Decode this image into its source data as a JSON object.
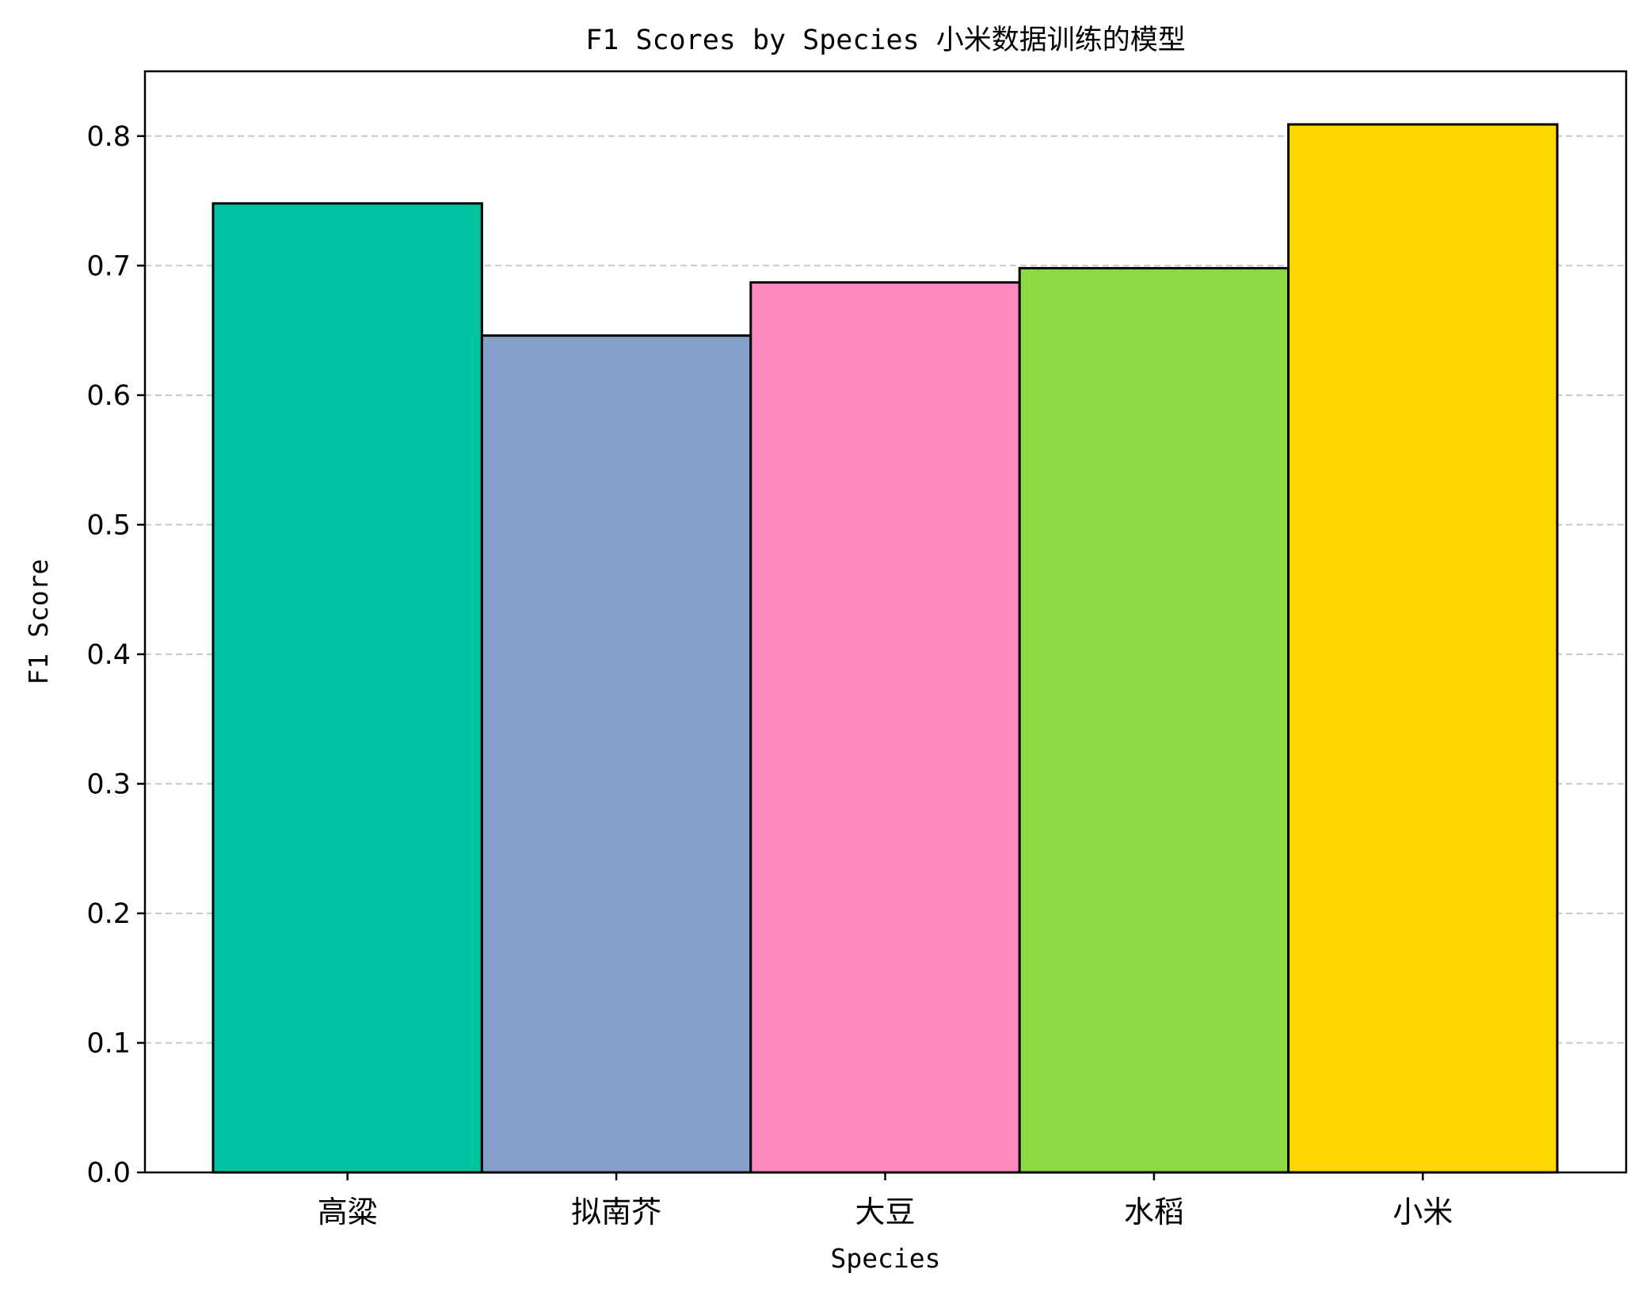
{
  "chart_data": {
    "type": "bar",
    "title": "F1 Scores by Species 小米数据训练的模型",
    "xlabel": "Species",
    "ylabel": "F1 Score",
    "categories": [
      "高粱",
      "拟南芥",
      "大豆",
      "水稻",
      "小米"
    ],
    "values": [
      0.748,
      0.646,
      0.687,
      0.698,
      0.809
    ],
    "colors": [
      "#00c2a1",
      "#86a0cb",
      "#ff8ac2",
      "#8dd944",
      "#ffd700"
    ],
    "ylim": [
      0,
      0.85
    ],
    "yticks": [
      0.0,
      0.1,
      0.2,
      0.3,
      0.4,
      0.5,
      0.6,
      0.7,
      0.8
    ],
    "ytick_labels": [
      "0.0",
      "0.1",
      "0.2",
      "0.3",
      "0.4",
      "0.5",
      "0.6",
      "0.7",
      "0.8"
    ],
    "grid": "y-dashed",
    "bar_edge_color": "#000000",
    "grid_color": "#c8c8c8"
  }
}
